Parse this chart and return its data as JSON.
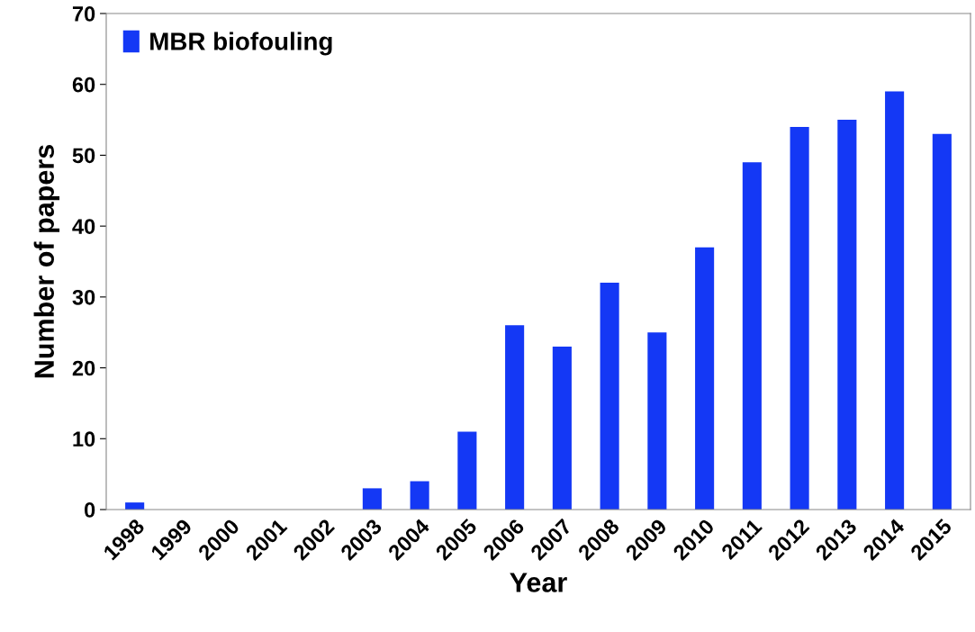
{
  "chart_data": {
    "type": "bar",
    "xlabel": "Year",
    "ylabel": "Number of papers",
    "categories": [
      "1998",
      "1999",
      "2000",
      "2001",
      "2002",
      "2003",
      "2004",
      "2005",
      "2006",
      "2007",
      "2008",
      "2009",
      "2010",
      "2011",
      "2012",
      "2013",
      "2014",
      "2015"
    ],
    "series": [
      {
        "name": "MBR biofouling",
        "color": "#1438f5",
        "values": [
          1,
          0,
          0,
          0,
          0,
          3,
          4,
          11,
          26,
          23,
          32,
          25,
          37,
          49,
          54,
          55,
          59,
          53
        ]
      }
    ],
    "ylim": [
      0,
      70
    ],
    "yticks": [
      0,
      10,
      20,
      30,
      40,
      50,
      60,
      70
    ],
    "grid": false,
    "legend": "top left"
  }
}
